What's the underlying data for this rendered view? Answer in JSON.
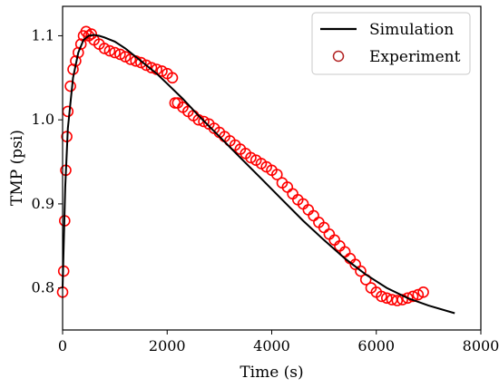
{
  "chart_data": {
    "type": "line",
    "xlabel": "Time (s)",
    "ylabel": "TMP (psi)",
    "xlim": [
      0,
      8000
    ],
    "ylim": [
      0.75,
      1.135
    ],
    "x_ticks": [
      0,
      2000,
      4000,
      6000,
      8000
    ],
    "y_ticks": [
      0.8,
      0.9,
      1.0,
      1.1
    ],
    "x_tick_labels": [
      "0",
      "2000",
      "4000",
      "6000",
      "8000"
    ],
    "y_tick_labels": [
      "0.8",
      "0.9",
      "1.0",
      "1.1"
    ],
    "grid": false,
    "legend_position": "top-right",
    "series": [
      {
        "name": "Simulation",
        "style": "line",
        "color": "#000000",
        "x": [
          0,
          50,
          100,
          200,
          300,
          400,
          500,
          600,
          700,
          800,
          1000,
          1200,
          1500,
          1800,
          2000,
          2300,
          2600,
          3000,
          3400,
          3800,
          4200,
          4600,
          5000,
          5400,
          5800,
          6200,
          6600,
          7000,
          7500
        ],
        "y": [
          0.8,
          0.92,
          0.99,
          1.05,
          1.08,
          1.095,
          1.1,
          1.101,
          1.1,
          1.098,
          1.093,
          1.085,
          1.07,
          1.055,
          1.043,
          1.025,
          1.005,
          0.98,
          0.955,
          0.93,
          0.905,
          0.88,
          0.857,
          0.835,
          0.816,
          0.8,
          0.788,
          0.779,
          0.77
        ]
      },
      {
        "name": "Experiment",
        "style": "marker",
        "color": "#ff0000",
        "x": [
          0,
          20,
          40,
          60,
          80,
          100,
          150,
          200,
          250,
          300,
          350,
          400,
          450,
          500,
          550,
          600,
          700,
          800,
          900,
          1000,
          1100,
          1200,
          1300,
          1400,
          1500,
          1600,
          1700,
          1800,
          1900,
          2000,
          2100,
          2150,
          2200,
          2300,
          2400,
          2500,
          2600,
          2700,
          2800,
          2900,
          3000,
          3100,
          3200,
          3300,
          3400,
          3500,
          3600,
          3700,
          3800,
          3900,
          4000,
          4100,
          4200,
          4300,
          4400,
          4500,
          4600,
          4700,
          4800,
          4900,
          5000,
          5100,
          5200,
          5300,
          5400,
          5500,
          5600,
          5700,
          5800,
          5900,
          6000,
          6100,
          6200,
          6300,
          6400,
          6500,
          6600,
          6700,
          6800,
          6900
        ],
        "y": [
          0.795,
          0.82,
          0.88,
          0.94,
          0.98,
          1.01,
          1.04,
          1.06,
          1.07,
          1.08,
          1.09,
          1.1,
          1.105,
          1.1,
          1.102,
          1.095,
          1.09,
          1.085,
          1.082,
          1.08,
          1.078,
          1.075,
          1.072,
          1.07,
          1.068,
          1.065,
          1.062,
          1.06,
          1.058,
          1.055,
          1.05,
          1.02,
          1.02,
          1.015,
          1.01,
          1.005,
          1.0,
          0.998,
          0.995,
          0.99,
          0.985,
          0.98,
          0.975,
          0.97,
          0.965,
          0.96,
          0.955,
          0.952,
          0.948,
          0.944,
          0.94,
          0.935,
          0.925,
          0.92,
          0.912,
          0.905,
          0.9,
          0.893,
          0.886,
          0.878,
          0.872,
          0.864,
          0.857,
          0.85,
          0.843,
          0.835,
          0.828,
          0.82,
          0.81,
          0.8,
          0.795,
          0.79,
          0.788,
          0.786,
          0.785,
          0.786,
          0.788,
          0.79,
          0.792,
          0.795
        ]
      }
    ]
  }
}
